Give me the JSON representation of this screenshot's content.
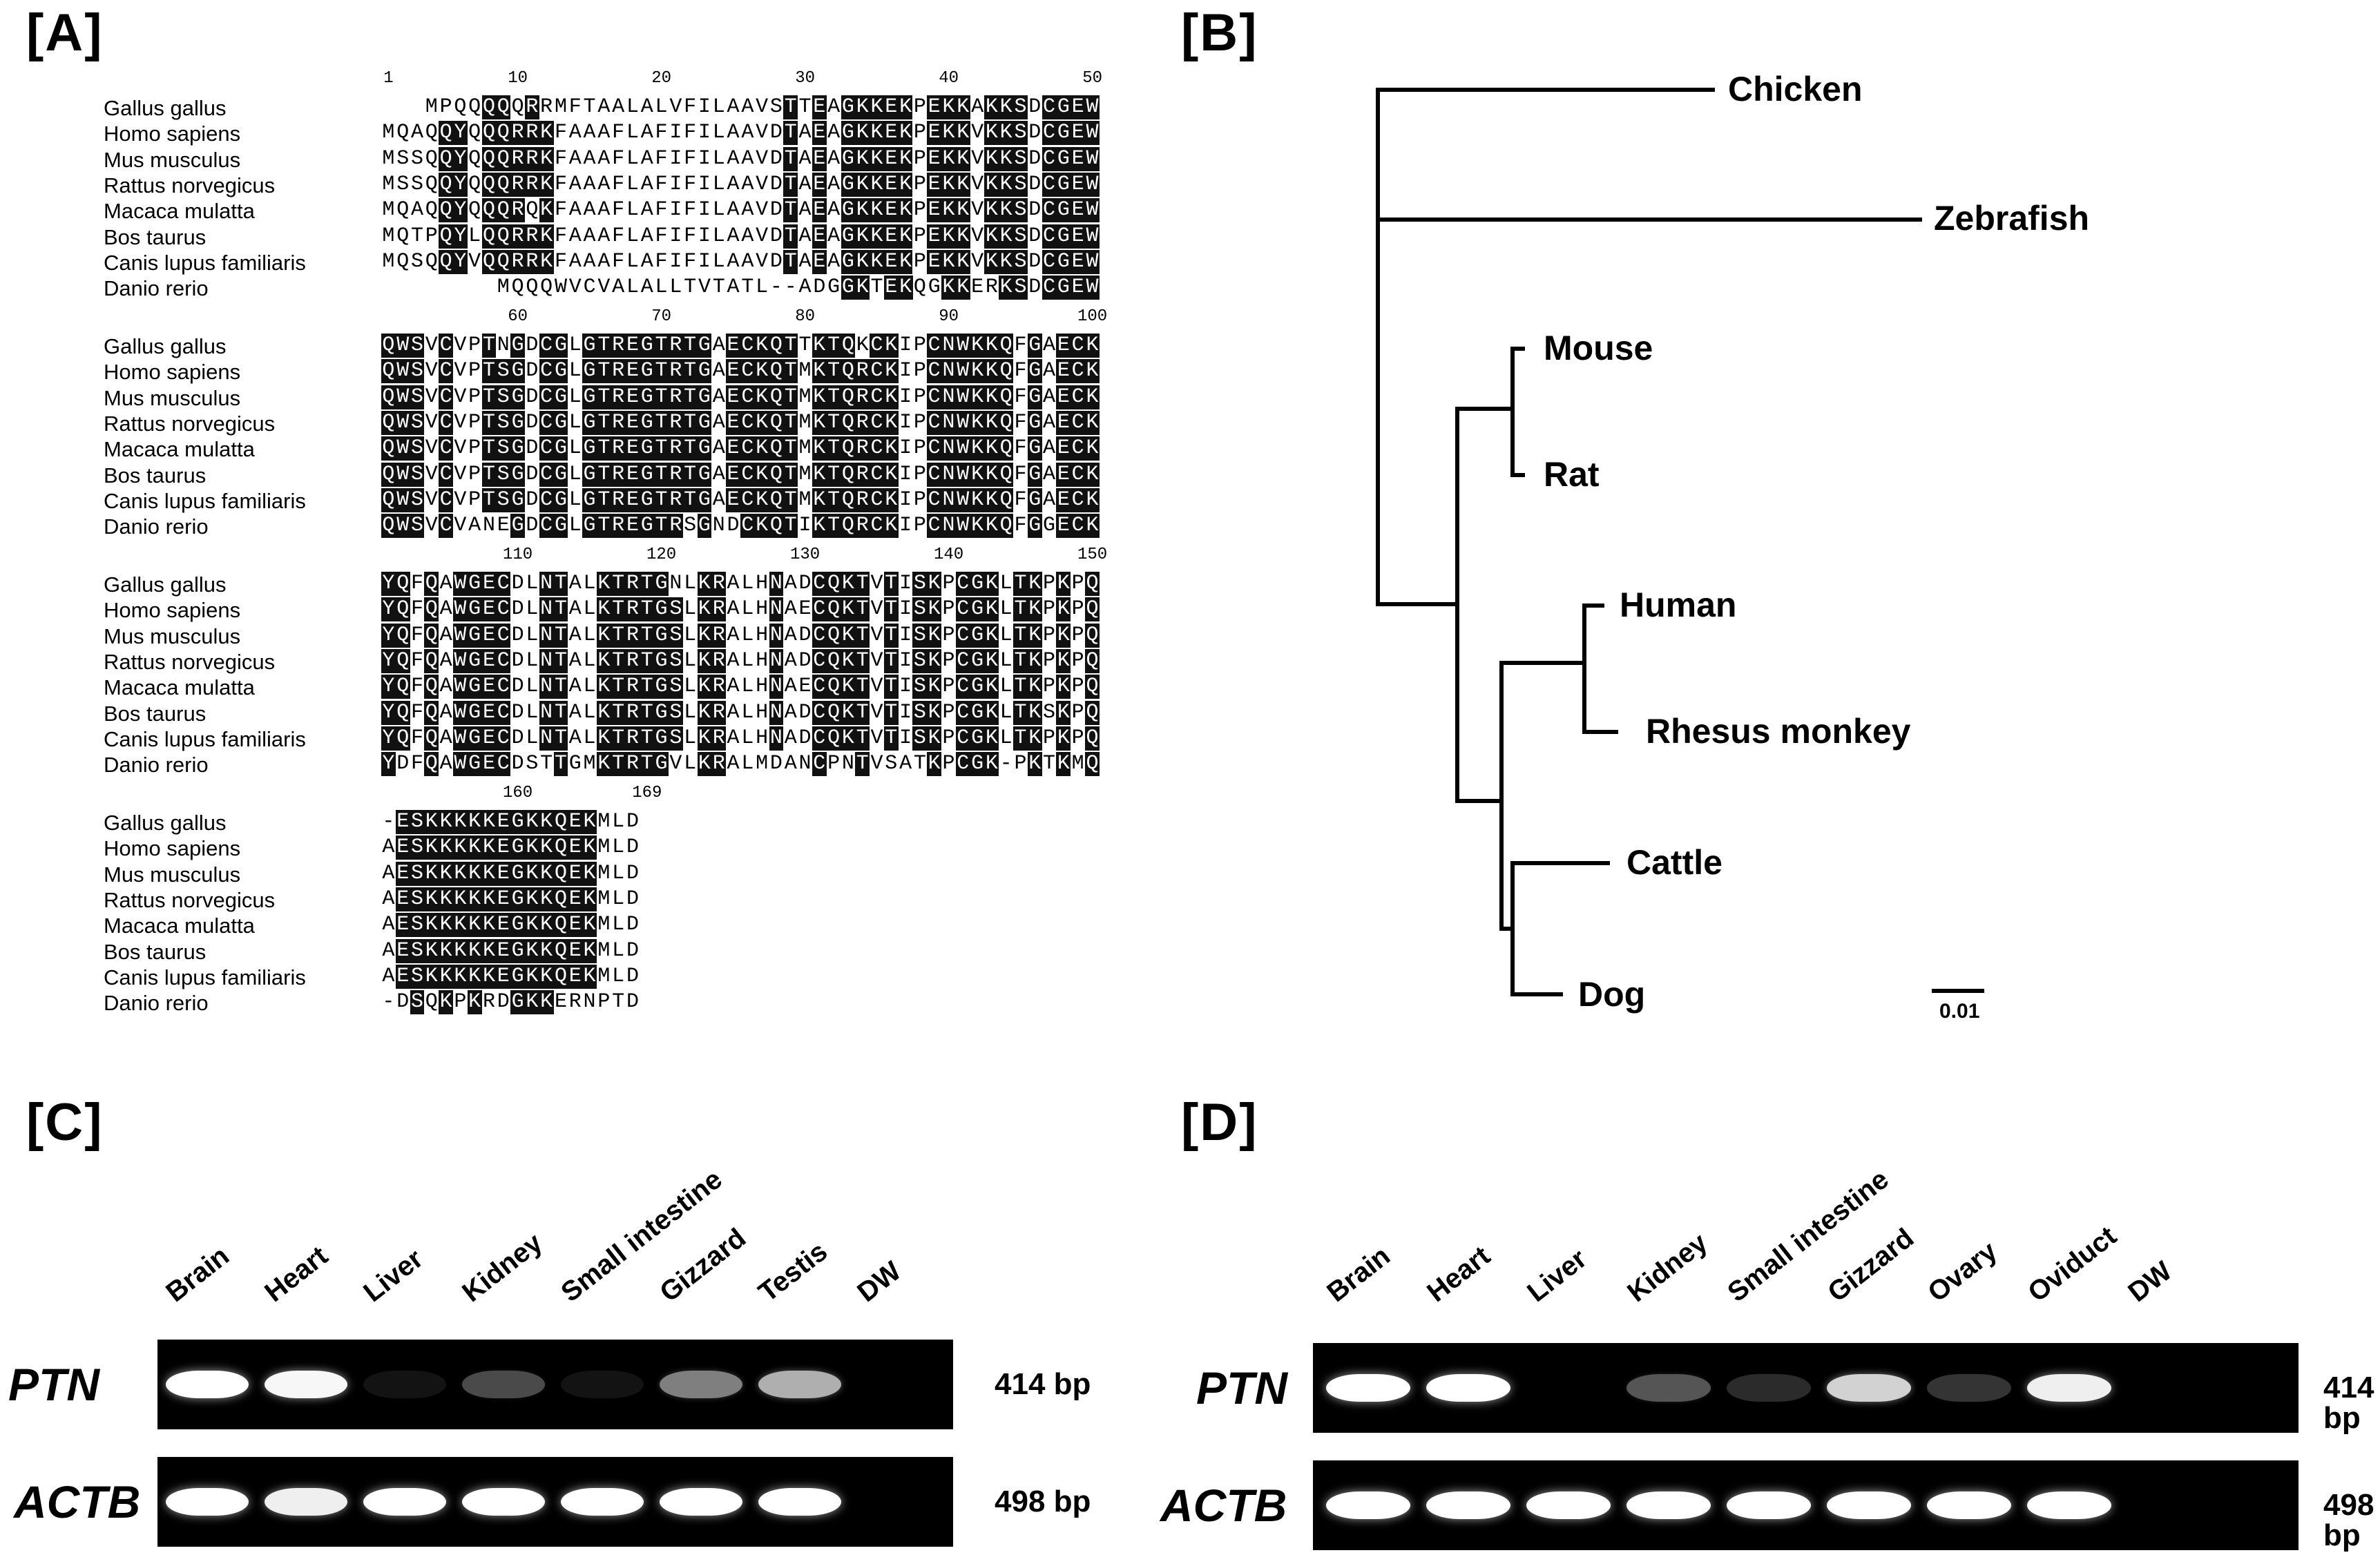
{
  "panels": {
    "A": "[A]",
    "B": "[B]",
    "C": "[C]",
    "D": "[D]"
  },
  "alignment": {
    "species": [
      "Gallus gallus",
      "Homo sapiens",
      "Mus musculus",
      "Rattus norvegicus",
      "Macaca mulatta",
      "Bos taurus",
      "Canis lupus familiaris",
      "Danio rerio"
    ],
    "blocks": [
      {
        "ticks": [
          {
            "label": "1",
            "col": 1
          },
          {
            "label": "10",
            "col": 10
          },
          {
            "label": "20",
            "col": 20
          },
          {
            "label": "30",
            "col": 30
          },
          {
            "label": "40",
            "col": 40
          },
          {
            "label": "50",
            "col": 50
          }
        ],
        "rows": [
          "MPQQQQQRRMFTAALALVFILAAVSTTEAGKKEKPEKKAKKSDCGEW",
          "MQAQQYQQQRRKFAAAFLAFIFILAAVDTAEAGKKEKPEKKVKKSDCGEW",
          "MSSQQYQQQRRKFAAAFLAFIFILAAVDTAEAGKKEKPEKKVKKSDCGEW",
          "MSSQQYQQQRRKFAAAFLAFIFILAAVDTAEAGKKEKPEKKVKKSDCGEW",
          "MQAQQYQQQRQKFAAAFLAFIFILAAVDTAEAGKKEKPEKKVKKSDCGEW",
          "MQTPQYLQQRRKFAAAFLAFIFILAAVDTAEAGKKEKPEKKVKKSDCGEW",
          "MQSQQYVQQRRKFAAAFLAFIFILAAVDTAEAGKKEKPEKKVKKSDCGEW",
          "MQQQWVCVALALLTVTATL--ADGGKTEKQGKKERKSDCGEW"
        ]
      },
      {
        "ticks": [
          {
            "label": "60",
            "col": 10
          },
          {
            "label": "70",
            "col": 20
          },
          {
            "label": "80",
            "col": 30
          },
          {
            "label": "90",
            "col": 40
          },
          {
            "label": "100",
            "col": 50
          }
        ],
        "rows": [
          "QWSVCVPTNGDCGLGTREGTRTGAECKQTTKTQKCKIPCNWKKQFGAECK",
          "QWSVCVPTSGDCGLGTREGTRTGAECKQTMKTQRCKIPCNWKKQFGAECK",
          "QWSVCVPTSGDCGLGTREGTRTGAECKQTMKTQRCKIPCNWKKQFGAECK",
          "QWSVCVPTSGDCGLGTREGTRTGAECKQTMKTQRCKIPCNWKKQFGAECK",
          "QWSVCVPTSGDCGLGTREGTRTGAECKQTMKTQRCKIPCNWKKQFGAECK",
          "QWSVCVPTSGDCGLGTREGTRTGAECKQTMKTQRCKIPCNWKKQFGAECK",
          "QWSVCVPTSGDCGLGTREGTRTGAECKQTMKTQRCKIPCNWKKQFGAECK",
          "QWSVCVANEGDCGLGTREGTRSGNDCKQTIKTQRCKIPCNWKKQFGGECK"
        ]
      },
      {
        "ticks": [
          {
            "label": "110",
            "col": 10
          },
          {
            "label": "120",
            "col": 20
          },
          {
            "label": "130",
            "col": 30
          },
          {
            "label": "140",
            "col": 40
          },
          {
            "label": "150",
            "col": 50
          }
        ],
        "rows": [
          "YQFQAWGECDLNTALKTRTGNLKRALHNADCQKTVTISKPCGKLTKPKPQ",
          "YQFQAWGECDLNTALKTRTGSLKRALHNAECQKTVTISKPCGKLTKPKPQ",
          "YQFQAWGECDLNTALKTRTGSLKRALHNADCQKTVTISKPCGKLTKPKPQ",
          "YQFQAWGECDLNTALKTRTGSLKRALHNADCQKTVTISKPCGKLTKPKPQ",
          "YQFQAWGECDLNTALKTRTGSLKRALHNAECQKTVTISKPCGKLTKPKPQ",
          "YQFQAWGECDLNTALKTRTGSLKRALHNADCQKTVTISKPCGKLTKSKPQ",
          "YQFQAWGECDLNTALKTRTGSLKRALHNADCQKTVTISKPCGKLTKPKPQ",
          "YDFQAWGECDSTTGMKTRTGVLKRALMDANCPNTVSATKPCGK-PKTKMQ"
        ]
      },
      {
        "ticks": [
          {
            "label": "160",
            "col": 10
          },
          {
            "label": "169",
            "col": 19
          }
        ],
        "rows": [
          "-ESKKKKKEGKKQEKMLD",
          "AESKKKKKEGKKQEKMLD",
          "AESKKKKKEGKKQEKMLD",
          "AESKKKKKEGKKQEKMLD",
          "AESKKKKKEGKKQEKMLD",
          "AESKKKKKEGKKQEKMLD",
          "AESKKKKKEGKKQEKMLD",
          "-DSQKPKRDGKKERNPTD"
        ]
      }
    ]
  },
  "tree": {
    "leaves": [
      "Chicken",
      "Zebrafish",
      "Mouse",
      "Rat",
      "Human",
      "Rhesus monkey",
      "Cattle",
      "Dog"
    ],
    "scale_label": "0.01"
  },
  "gel_C": {
    "lanes": [
      "Brain",
      "Heart",
      "Liver",
      "Kidney",
      "Small intestine",
      "Gizzard",
      "Testis",
      "DW"
    ],
    "genes": [
      {
        "name": "PTN",
        "size": "414 bp",
        "intensity": [
          1.0,
          0.95,
          0.05,
          0.35,
          0.05,
          0.55,
          0.7,
          0.0
        ]
      },
      {
        "name": "ACTB",
        "size": "498 bp",
        "intensity": [
          1.0,
          0.9,
          1.0,
          1.0,
          1.0,
          1.0,
          1.0,
          0.0
        ]
      }
    ]
  },
  "gel_D": {
    "lanes": [
      "Brain",
      "Heart",
      "Liver",
      "Kidney",
      "Small intestine",
      "Gizzard",
      "Ovary",
      "Oviduct",
      "DW"
    ],
    "genes": [
      {
        "name": "PTN",
        "size": "414 bp",
        "intensity": [
          1.0,
          1.0,
          0.0,
          0.4,
          0.2,
          0.8,
          0.25,
          0.9,
          0.0
        ]
      },
      {
        "name": "ACTB",
        "size": "498 bp",
        "intensity": [
          1.0,
          1.0,
          1.0,
          1.0,
          1.0,
          1.0,
          1.0,
          1.0,
          0.0
        ]
      }
    ]
  }
}
